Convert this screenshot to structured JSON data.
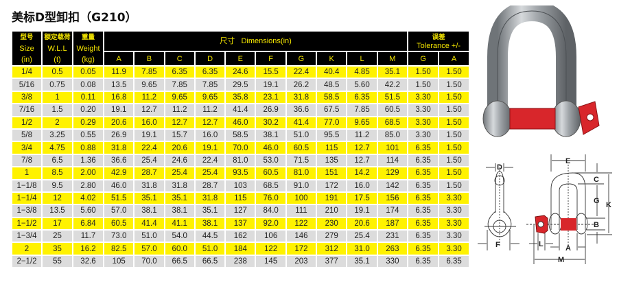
{
  "title": "美标D型卸扣（G210）",
  "colors": {
    "header_bg": "#000000",
    "header_text": "#f5e600",
    "row_yellow": "#fff200",
    "row_gray": "#dcdcdc",
    "pin_red": "#d8262b"
  },
  "header": {
    "size": {
      "cn": "型号",
      "en": "Size",
      "unit": "(in)"
    },
    "wll": {
      "cn": "额定载荷",
      "en": "W.L.L",
      "unit": "(t)"
    },
    "weight": {
      "cn": "重量",
      "en": "Weight",
      "unit": "(kg)"
    },
    "dimensions": {
      "cn": "尺寸",
      "en": "Dimensions(in)",
      "cols": [
        "A",
        "B",
        "C",
        "D",
        "E",
        "F",
        "G",
        "K",
        "L",
        "M"
      ]
    },
    "tolerance": {
      "cn": "误差",
      "en": "Tolerance  +/-",
      "cols": [
        "G",
        "A"
      ]
    }
  },
  "rows": [
    [
      "1/4",
      "0.5",
      "0.05",
      "11.9",
      "7.85",
      "6.35",
      "6.35",
      "24.6",
      "15.5",
      "22.4",
      "40.4",
      "4.85",
      "35.1",
      "1.50",
      "1.50"
    ],
    [
      "5/16",
      "0.75",
      "0.08",
      "13.5",
      "9.65",
      "7.85",
      "7.85",
      "29.5",
      "19.1",
      "26.2",
      "48.5",
      "5.60",
      "42.2",
      "1.50",
      "1.50"
    ],
    [
      "3/8",
      "1",
      "0.11",
      "16.8",
      "11.2",
      "9.65",
      "9.65",
      "35.8",
      "23.1",
      "31.8",
      "58.5",
      "6.35",
      "51.5",
      "3.30",
      "1.50"
    ],
    [
      "7/16",
      "1.5",
      "0.20",
      "19.1",
      "12.7",
      "11.2",
      "11.2",
      "41.4",
      "26.9",
      "36.6",
      "67.5",
      "7.85",
      "60.5",
      "3.30",
      "1.50"
    ],
    [
      "1/2",
      "2",
      "0.29",
      "20.6",
      "16.0",
      "12.7",
      "12.7",
      "46.0",
      "30.2",
      "41.4",
      "77.0",
      "9.65",
      "68.5",
      "3.30",
      "1.50"
    ],
    [
      "5/8",
      "3.25",
      "0.55",
      "26.9",
      "19.1",
      "15.7",
      "16.0",
      "58.5",
      "38.1",
      "51.0",
      "95.5",
      "11.2",
      "85.0",
      "3.30",
      "1.50"
    ],
    [
      "3/4",
      "4.75",
      "0.88",
      "31.8",
      "22.4",
      "20.6",
      "19.1",
      "70.0",
      "46.0",
      "60.5",
      "115",
      "12.7",
      "101",
      "6.35",
      "1.50"
    ],
    [
      "7/8",
      "6.5",
      "1.36",
      "36.6",
      "25.4",
      "24.6",
      "22.4",
      "81.0",
      "53.0",
      "71.5",
      "135",
      "12.7",
      "114",
      "6.35",
      "1.50"
    ],
    [
      "1",
      "8.5",
      "2.00",
      "42.9",
      "28.7",
      "25.4",
      "25.4",
      "93.5",
      "60.5",
      "81.0",
      "151",
      "14.2",
      "129",
      "6.35",
      "1.50"
    ],
    [
      "1−1/8",
      "9.5",
      "2.80",
      "46.0",
      "31.8",
      "31.8",
      "28.7",
      "103",
      "68.5",
      "91.0",
      "172",
      "16.0",
      "142",
      "6.35",
      "1.50"
    ],
    [
      "1−1/4",
      "12",
      "4.02",
      "51.5",
      "35.1",
      "35.1",
      "31.8",
      "115",
      "76.0",
      "100",
      "191",
      "17.5",
      "156",
      "6.35",
      "3.30"
    ],
    [
      "1−3/8",
      "13.5",
      "5.60",
      "57.0",
      "38.1",
      "38.1",
      "35.1",
      "127",
      "84.0",
      "111",
      "210",
      "19.1",
      "174",
      "6.35",
      "3.30"
    ],
    [
      "1−1/2",
      "17",
      "6.84",
      "60.5",
      "41.4",
      "41.1",
      "38.1",
      "137",
      "92.0",
      "122",
      "230",
      "20.6",
      "187",
      "6.35",
      "3.30"
    ],
    [
      "1−3/4",
      "25",
      "11.7",
      "73.0",
      "51.0",
      "54.0",
      "44.5",
      "162",
      "106",
      "146",
      "279",
      "25.4",
      "231",
      "6.35",
      "3.30"
    ],
    [
      "2",
      "35",
      "16.2",
      "82.5",
      "57.0",
      "60.0",
      "51.0",
      "184",
      "122",
      "172",
      "312",
      "31.0",
      "263",
      "6.35",
      "3.30"
    ],
    [
      "2−1/2",
      "55",
      "32.6",
      "105",
      "70.0",
      "66.5",
      "66.5",
      "238",
      "145",
      "203",
      "377",
      "35.1",
      "330",
      "6.35",
      "6.35"
    ]
  ],
  "diagram_labels": {
    "D": "D",
    "F": "F",
    "E": "E",
    "C": "C",
    "G": "G",
    "K": "K",
    "B": "B",
    "L": "L",
    "A": "A",
    "M": "M"
  }
}
